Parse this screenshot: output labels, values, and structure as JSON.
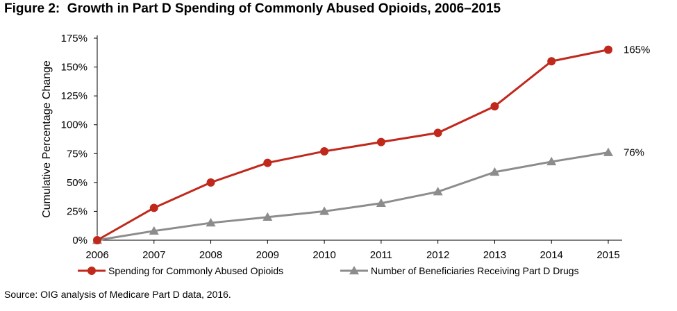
{
  "figure": {
    "label": "Figure 2:",
    "title": "Growth in Part D Spending of Commonly Abused Opioids, 2006–2015",
    "source": "Source:  OIG analysis of Medicare Part D data, 2016."
  },
  "chart_data": {
    "type": "line",
    "title": "Growth in Part D Spending of Commonly Abused Opioids, 2006–2015",
    "xlabel": "",
    "ylabel": "Cumulative Percentage Change",
    "categories": [
      "2006",
      "2007",
      "2008",
      "2009",
      "2010",
      "2011",
      "2012",
      "2013",
      "2014",
      "2015"
    ],
    "y_ticks": [
      "0%",
      "25%",
      "50%",
      "75%",
      "100%",
      "125%",
      "150%",
      "175%"
    ],
    "ylim": [
      0,
      175
    ],
    "grid": false,
    "legend_position": "bottom",
    "series": [
      {
        "name": "Spending for Commonly Abused Opioids",
        "color": "#c0281c",
        "marker": "circle",
        "values": [
          0,
          28,
          50,
          67,
          77,
          85,
          93,
          116,
          155,
          165
        ],
        "end_label": "165%"
      },
      {
        "name": "Number of Beneficiaries Receiving Part D Drugs",
        "color": "#8c8c8c",
        "marker": "triangle",
        "values": [
          0,
          8,
          15,
          20,
          25,
          32,
          42,
          59,
          68,
          76
        ],
        "end_label": "76%"
      }
    ]
  }
}
